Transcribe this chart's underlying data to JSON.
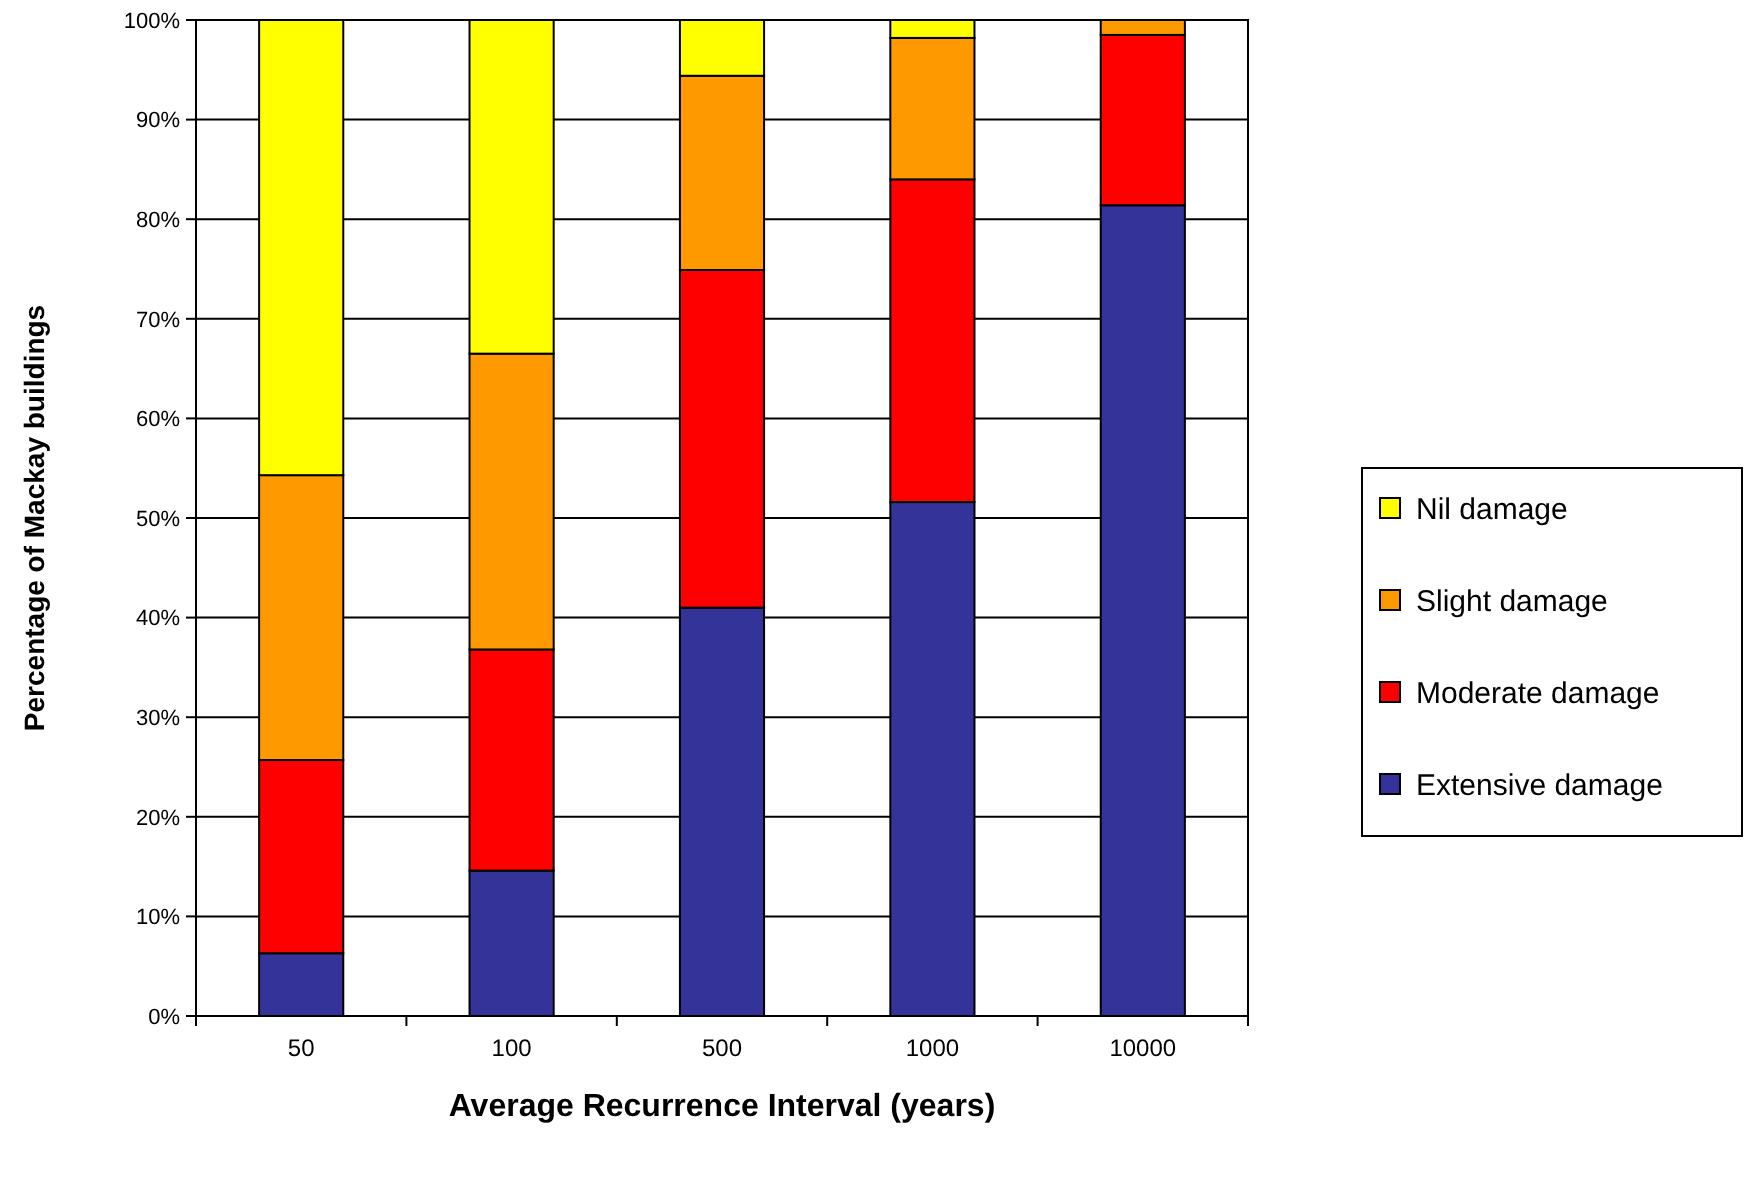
{
  "chart_data": {
    "type": "bar",
    "stacked": true,
    "xlabel": "Average Recurrence Interval (years)",
    "ylabel": "Percentage of Mackay buildings",
    "categories": [
      "50",
      "100",
      "500",
      "1000",
      "10000"
    ],
    "series": [
      {
        "name": "Extensive damage",
        "color": "#333399",
        "values": [
          6.3,
          14.6,
          41.0,
          51.6,
          81.4
        ]
      },
      {
        "name": "Moderate damage",
        "color": "#ff0000",
        "values": [
          19.4,
          22.2,
          33.9,
          32.4,
          17.1
        ]
      },
      {
        "name": "Slight damage",
        "color": "#ff9900",
        "values": [
          28.6,
          29.7,
          19.5,
          14.2,
          1.5
        ]
      },
      {
        "name": "Nil damage",
        "color": "#ffff00",
        "values": [
          45.7,
          33.5,
          5.6,
          1.8,
          0
        ]
      }
    ],
    "ylim": [
      0,
      100
    ],
    "yticks": [
      {
        "value": 0,
        "label": "0%"
      },
      {
        "value": 10,
        "label": "10%"
      },
      {
        "value": 20,
        "label": "20%"
      },
      {
        "value": 30,
        "label": "30%"
      },
      {
        "value": 40,
        "label": "40%"
      },
      {
        "value": 50,
        "label": "50%"
      },
      {
        "value": 60,
        "label": "60%"
      },
      {
        "value": 70,
        "label": "70%"
      },
      {
        "value": 80,
        "label": "80%"
      },
      {
        "value": 90,
        "label": "90%"
      },
      {
        "value": 100,
        "label": "100%"
      }
    ],
    "grid": "y",
    "legend": "right"
  }
}
